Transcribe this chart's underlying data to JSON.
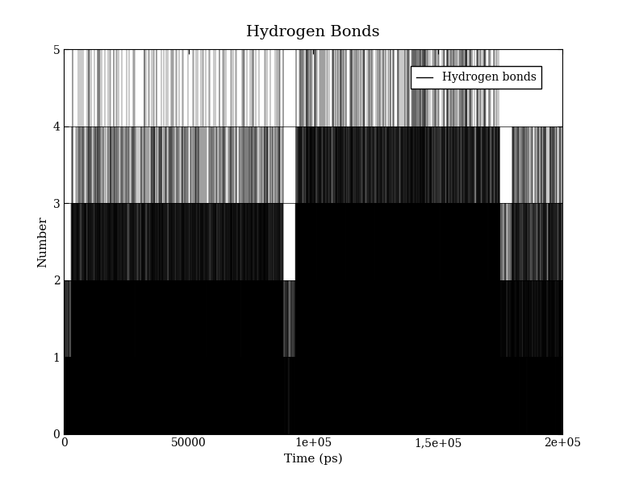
{
  "title": "Hydrogen Bonds",
  "xlabel": "Time (ps)",
  "ylabel": "Number",
  "xlim": [
    0,
    200000
  ],
  "ylim": [
    0,
    5
  ],
  "yticks": [
    0,
    1,
    2,
    3,
    4,
    5
  ],
  "xticks": [
    0,
    50000,
    100000,
    150000,
    200000
  ],
  "xtick_labels": [
    "0",
    "50000",
    "1e+05",
    "1,5e+05",
    "2e+05"
  ],
  "legend_label": "Hydrogen bonds",
  "line_color": "black",
  "background_color": "white",
  "title_fontsize": 14,
  "label_fontsize": 11,
  "tick_fontsize": 10,
  "seed": 12345,
  "n_points": 10000
}
